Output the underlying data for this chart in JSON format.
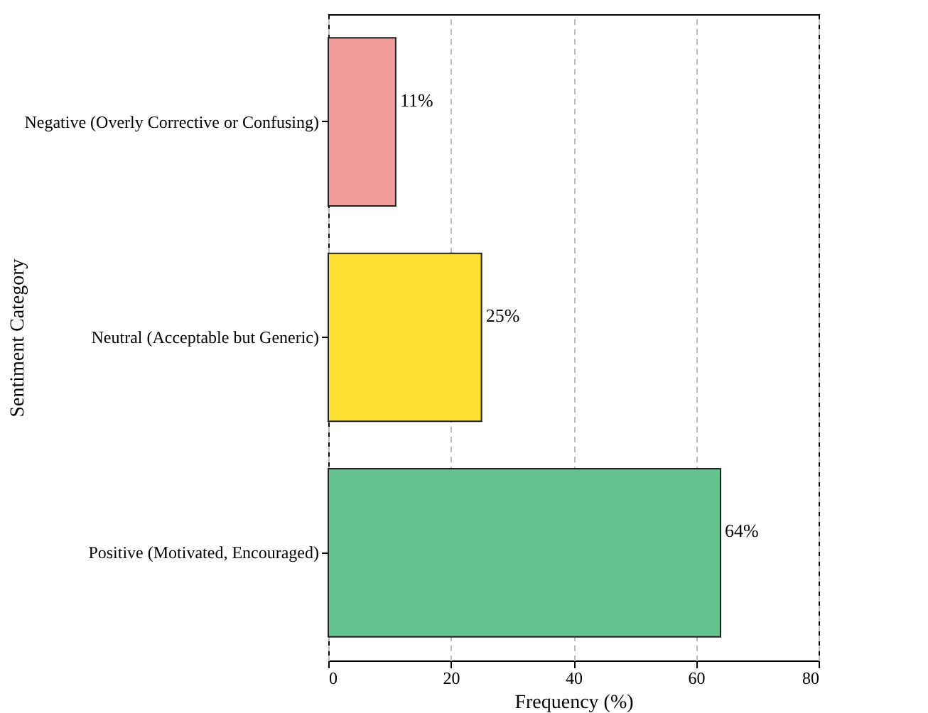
{
  "chart_data": {
    "type": "bar",
    "orientation": "horizontal",
    "categories": [
      "Negative (Overly Corrective or Confusing)",
      "Neutral (Acceptable but Generic)",
      "Positive (Motivated, Encouraged)"
    ],
    "values": [
      11,
      25,
      64
    ],
    "colors": [
      "#f19c9a",
      "#fde030",
      "#63c28e"
    ],
    "value_labels": [
      "11%",
      "25%",
      "64%"
    ],
    "xlabel": "Frequency (%)",
    "ylabel": "Sentiment Category",
    "xlim": [
      0,
      80
    ],
    "xticks": [
      0,
      20,
      40,
      60,
      80
    ],
    "grid": "x"
  }
}
